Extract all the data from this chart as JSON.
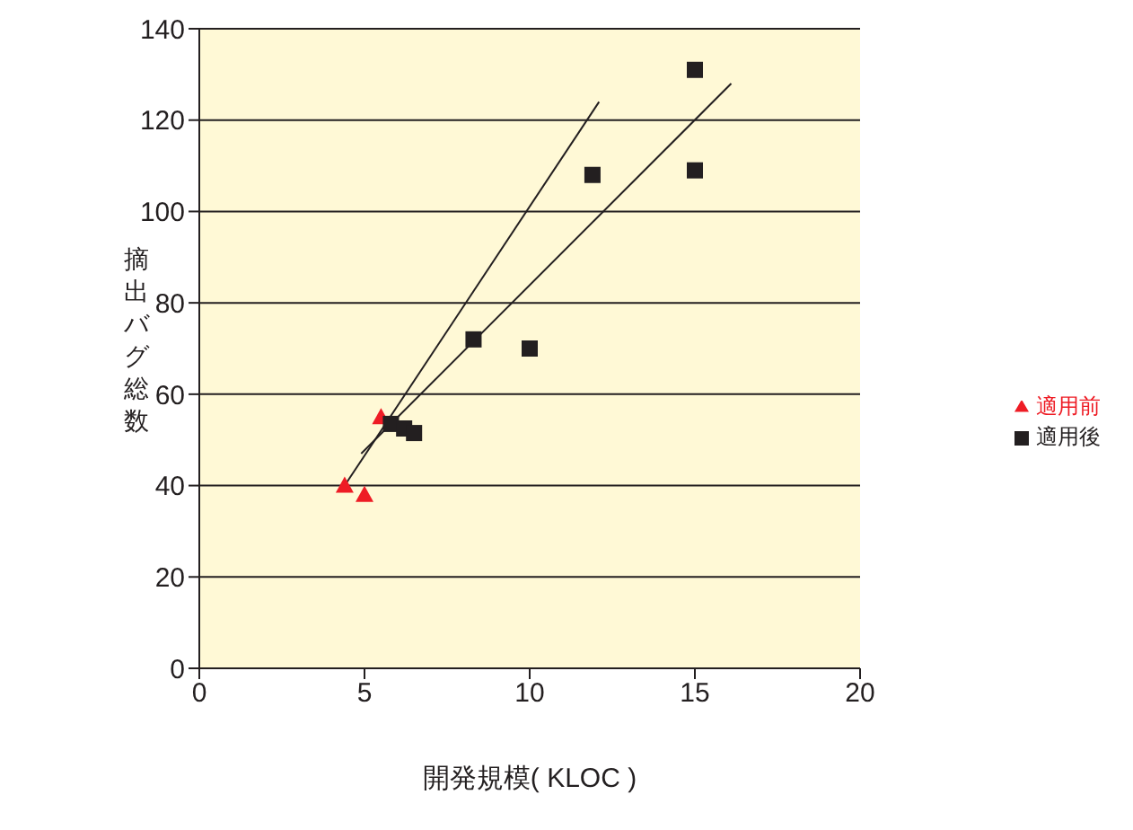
{
  "chart_data": {
    "type": "scatter",
    "xlabel": "開発規模( KLOC )",
    "ylabel": "摘出バグ総数",
    "xlim": [
      0,
      20
    ],
    "xticks": [
      0,
      5,
      10,
      15,
      20
    ],
    "ylim": [
      0,
      140
    ],
    "yticks": [
      0,
      20,
      40,
      60,
      80,
      100,
      120,
      140
    ],
    "grid": "y",
    "legend": "right",
    "series": [
      {
        "name": "適用前",
        "color": "#ee1c25",
        "marker": "triangle",
        "x": [
          4.4,
          5.0,
          5.5
        ],
        "values": [
          40,
          38,
          55
        ]
      },
      {
        "name": "適用後",
        "color": "#231f20",
        "marker": "square",
        "x": [
          5.8,
          6.2,
          6.5,
          8.3,
          10,
          11.9,
          15,
          15
        ],
        "values": [
          53.5,
          52.5,
          51.5,
          72,
          70,
          108,
          109,
          131
        ]
      },
      {
        "type": "line",
        "color": "#231f20",
        "x": [
          4.4,
          12.1
        ],
        "values": [
          40,
          124
        ]
      },
      {
        "type": "line",
        "color": "#231f20",
        "x": [
          4.9,
          16.1
        ],
        "values": [
          47,
          128
        ]
      }
    ]
  }
}
